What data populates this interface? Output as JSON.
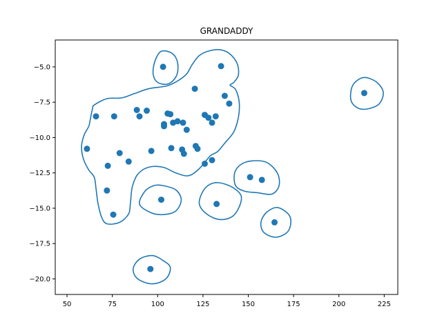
{
  "chart_data": {
    "type": "scatter",
    "title": "GRANDADDY",
    "xlabel": "",
    "ylabel": "",
    "xlim": [
      43.5,
      232.5
    ],
    "ylim": [
      -21.1,
      -3.1
    ],
    "xticks": [
      50,
      75,
      100,
      125,
      150,
      175,
      200,
      225
    ],
    "yticks": [
      -5.0,
      -7.5,
      -10.0,
      -12.5,
      -15.0,
      -17.5,
      -20.0
    ],
    "xtick_labels": [
      "50",
      "75",
      "100",
      "125",
      "150",
      "175",
      "200",
      "225"
    ],
    "ytick_labels": [
      "−5.0",
      "−7.5",
      "−10.0",
      "−12.5",
      "−15.0",
      "−17.5",
      "−20.0"
    ],
    "grid": false,
    "point_color": "#1f77b4",
    "contour_color": "#1f77b4",
    "points": [
      {
        "x": 103,
        "y": -5.0
      },
      {
        "x": 135,
        "y": -4.95
      },
      {
        "x": 214,
        "y": -6.85
      },
      {
        "x": 120.5,
        "y": -6.55
      },
      {
        "x": 137,
        "y": -7.05
      },
      {
        "x": 139.5,
        "y": -7.6
      },
      {
        "x": 66,
        "y": -8.5
      },
      {
        "x": 76,
        "y": -8.5
      },
      {
        "x": 88.5,
        "y": -8.05
      },
      {
        "x": 94,
        "y": -8.1
      },
      {
        "x": 90,
        "y": -8.5
      },
      {
        "x": 105.5,
        "y": -8.3
      },
      {
        "x": 107,
        "y": -8.35
      },
      {
        "x": 103.5,
        "y": -9.05
      },
      {
        "x": 103.5,
        "y": -9.2
      },
      {
        "x": 108.5,
        "y": -8.95
      },
      {
        "x": 111,
        "y": -8.85
      },
      {
        "x": 114,
        "y": -8.95
      },
      {
        "x": 116,
        "y": -9.45
      },
      {
        "x": 126,
        "y": -8.4
      },
      {
        "x": 128,
        "y": -8.6
      },
      {
        "x": 132,
        "y": -8.5
      },
      {
        "x": 130,
        "y": -8.95
      },
      {
        "x": 61,
        "y": -10.8
      },
      {
        "x": 79,
        "y": -11.1
      },
      {
        "x": 96.5,
        "y": -10.95
      },
      {
        "x": 107.5,
        "y": -10.75
      },
      {
        "x": 113.5,
        "y": -10.85
      },
      {
        "x": 114.5,
        "y": -11.15
      },
      {
        "x": 121,
        "y": -10.6
      },
      {
        "x": 122,
        "y": -10.8
      },
      {
        "x": 72.5,
        "y": -12.0
      },
      {
        "x": 84,
        "y": -11.7
      },
      {
        "x": 126,
        "y": -11.85
      },
      {
        "x": 130,
        "y": -11.6
      },
      {
        "x": 151,
        "y": -12.8
      },
      {
        "x": 157.5,
        "y": -13.0
      },
      {
        "x": 72,
        "y": -13.75
      },
      {
        "x": 102,
        "y": -14.4
      },
      {
        "x": 132.5,
        "y": -14.7
      },
      {
        "x": 75.5,
        "y": -15.45
      },
      {
        "x": 164.5,
        "y": -16.0
      },
      {
        "x": 96,
        "y": -19.3
      }
    ],
    "contours": [
      {
        "shape": "main-region",
        "points": [
          [
            65,
            -7.7
          ],
          [
            72,
            -7.25
          ],
          [
            80,
            -7.2
          ],
          [
            87,
            -6.9
          ],
          [
            95,
            -6.55
          ],
          [
            105,
            -6.35
          ],
          [
            111,
            -6.0
          ],
          [
            116,
            -5.5
          ],
          [
            119,
            -4.85
          ],
          [
            123,
            -4.2
          ],
          [
            129,
            -3.85
          ],
          [
            135,
            -3.8
          ],
          [
            140,
            -4.1
          ],
          [
            144,
            -4.8
          ],
          [
            144.5,
            -5.6
          ],
          [
            142,
            -6.1
          ],
          [
            140,
            -6.3
          ],
          [
            143,
            -6.6
          ],
          [
            145,
            -7.5
          ],
          [
            144.5,
            -8.6
          ],
          [
            142,
            -9.6
          ],
          [
            137,
            -10.4
          ],
          [
            133,
            -11.0
          ],
          [
            129,
            -11.3
          ],
          [
            123,
            -12.2
          ],
          [
            117,
            -12.7
          ],
          [
            110,
            -12.5
          ],
          [
            103,
            -12.1
          ],
          [
            95,
            -12.1
          ],
          [
            89,
            -12.6
          ],
          [
            86,
            -13.5
          ],
          [
            85,
            -14.6
          ],
          [
            84,
            -15.4
          ],
          [
            79,
            -16.0
          ],
          [
            72,
            -16.1
          ],
          [
            69,
            -15.6
          ],
          [
            67,
            -14.6
          ],
          [
            66,
            -13.6
          ],
          [
            65,
            -12.8
          ],
          [
            62,
            -12.3
          ],
          [
            59,
            -11.5
          ],
          [
            58,
            -10.6
          ],
          [
            59.5,
            -9.8
          ],
          [
            62,
            -9.2
          ],
          [
            63,
            -8.6
          ],
          [
            64,
            -8.0
          ]
        ]
      },
      {
        "shape": "top-left-blob",
        "points": [
          [
            102,
            -3.9
          ],
          [
            108,
            -4.05
          ],
          [
            111,
            -4.7
          ],
          [
            110.5,
            -5.6
          ],
          [
            106,
            -6.2
          ],
          [
            100,
            -6.1
          ],
          [
            97.5,
            -5.5
          ],
          [
            98.5,
            -4.6
          ]
        ]
      },
      {
        "shape": "right-blob",
        "points": [
          [
            214,
            -5.75
          ],
          [
            221,
            -6.1
          ],
          [
            224.5,
            -6.85
          ],
          [
            221.5,
            -7.7
          ],
          [
            213,
            -8.0
          ],
          [
            207.5,
            -7.6
          ],
          [
            206.5,
            -6.85
          ],
          [
            208.5,
            -6.15
          ]
        ]
      },
      {
        "shape": "mid-right-blob",
        "points": [
          [
            152,
            -11.65
          ],
          [
            160,
            -11.75
          ],
          [
            166,
            -12.5
          ],
          [
            167,
            -13.4
          ],
          [
            163,
            -14.0
          ],
          [
            155,
            -13.9
          ],
          [
            148,
            -13.8
          ],
          [
            143,
            -13.4
          ],
          [
            142.5,
            -12.5
          ],
          [
            146,
            -11.9
          ]
        ]
      },
      {
        "shape": "lower-center-blob",
        "points": [
          [
            103,
            -13.4
          ],
          [
            110,
            -13.7
          ],
          [
            113,
            -14.4
          ],
          [
            110,
            -15.2
          ],
          [
            103,
            -15.45
          ],
          [
            96,
            -15.3
          ],
          [
            90,
            -14.7
          ],
          [
            93,
            -13.8
          ],
          [
            98,
            -13.4
          ]
        ]
      },
      {
        "shape": "lower-right-center-blob",
        "points": [
          [
            134,
            -13.2
          ],
          [
            141,
            -13.5
          ],
          [
            146,
            -14.1
          ],
          [
            145,
            -14.9
          ],
          [
            141,
            -15.6
          ],
          [
            134,
            -15.8
          ],
          [
            127,
            -15.4
          ],
          [
            123,
            -14.7
          ],
          [
            125,
            -13.8
          ],
          [
            129,
            -13.3
          ]
        ]
      },
      {
        "shape": "far-right-lower-blob",
        "points": [
          [
            166,
            -14.95
          ],
          [
            172,
            -15.4
          ],
          [
            173.5,
            -16.0
          ],
          [
            171.5,
            -16.7
          ],
          [
            165,
            -17.05
          ],
          [
            158.5,
            -16.7
          ],
          [
            157,
            -16.0
          ],
          [
            160,
            -15.3
          ]
        ]
      },
      {
        "shape": "bottom-blob",
        "points": [
          [
            97,
            -18.35
          ],
          [
            103,
            -18.7
          ],
          [
            107,
            -19.2
          ],
          [
            104.5,
            -20.0
          ],
          [
            97,
            -20.35
          ],
          [
            89,
            -20.0
          ],
          [
            86.5,
            -19.3
          ],
          [
            90,
            -18.6
          ]
        ]
      }
    ]
  }
}
